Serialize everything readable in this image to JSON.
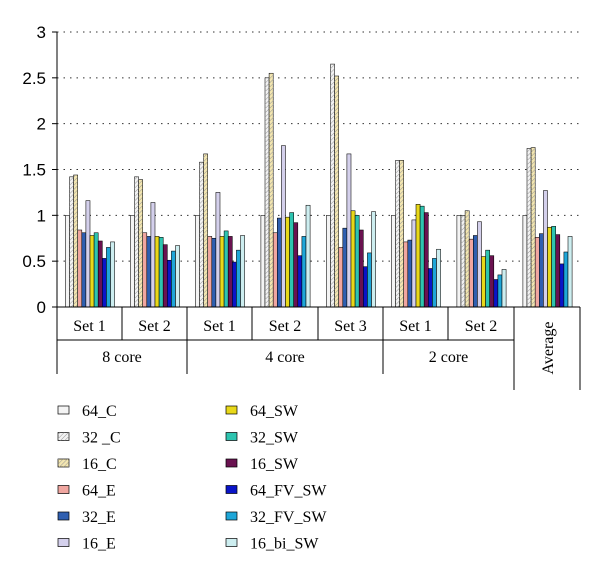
{
  "chart_data": {
    "type": "bar",
    "title": "",
    "ylabel": "",
    "xlabel": "",
    "ylim": [
      0,
      3
    ],
    "yticks": [
      "0",
      "0.5",
      "1",
      "1.5",
      "2",
      "2.5",
      "3"
    ],
    "grid": "horizontal dotted",
    "legend_placement": "bottom, two columns",
    "categories": [
      {
        "label": "Set 1",
        "group": "8 core"
      },
      {
        "label": "Set 2",
        "group": "8 core"
      },
      {
        "label": "Set 1",
        "group": "4 core"
      },
      {
        "label": "Set 2",
        "group": "4 core"
      },
      {
        "label": "Set 3",
        "group": "4 core"
      },
      {
        "label": "Set 1",
        "group": "2 core"
      },
      {
        "label": "Set 2",
        "group": "2 core"
      },
      {
        "label": "Average",
        "group": ""
      }
    ],
    "groups": [
      "8 core",
      "4 core",
      "2 core"
    ],
    "series": [
      {
        "name": "64_C",
        "color": "#f4f4f4",
        "pattern": "plain",
        "values": [
          1.0,
          1.0,
          1.0,
          1.0,
          1.0,
          1.0,
          1.0,
          1.0
        ]
      },
      {
        "name": "32 _C",
        "color": "#f2f2f2",
        "pattern": "hatch",
        "values": [
          1.42,
          1.42,
          1.58,
          2.5,
          2.65,
          1.6,
          1.0,
          1.73
        ]
      },
      {
        "name": "16_C",
        "color": "#f3e6b0",
        "pattern": "hatch",
        "values": [
          1.44,
          1.39,
          1.67,
          2.55,
          2.52,
          1.6,
          1.05,
          1.74
        ]
      },
      {
        "name": "64_E",
        "color": "#f0a6a0",
        "pattern": "plain",
        "values": [
          0.84,
          0.81,
          0.77,
          0.81,
          0.65,
          0.71,
          0.74,
          0.76
        ]
      },
      {
        "name": "32_E",
        "color": "#2f5fb0",
        "pattern": "plain",
        "values": [
          0.81,
          0.77,
          0.75,
          0.97,
          0.86,
          0.73,
          0.78,
          0.8
        ]
      },
      {
        "name": "16_E",
        "color": "#d4d0ec",
        "pattern": "plain",
        "values": [
          1.16,
          1.14,
          1.25,
          1.76,
          1.67,
          0.95,
          0.93,
          1.27
        ]
      },
      {
        "name": "64_SW",
        "color": "#e8d81a",
        "pattern": "plain",
        "values": [
          0.78,
          0.77,
          0.77,
          0.98,
          1.05,
          1.12,
          0.55,
          0.87
        ]
      },
      {
        "name": "32_SW",
        "color": "#2ec4b0",
        "pattern": "plain",
        "values": [
          0.81,
          0.76,
          0.83,
          1.03,
          1.0,
          1.1,
          0.62,
          0.88
        ]
      },
      {
        "name": "16_SW",
        "color": "#6a1250",
        "pattern": "plain",
        "values": [
          0.72,
          0.68,
          0.77,
          0.92,
          0.84,
          1.03,
          0.56,
          0.79
        ]
      },
      {
        "name": "64_FV_SW",
        "color": "#0a14c8",
        "pattern": "plain",
        "values": [
          0.53,
          0.51,
          0.49,
          0.56,
          0.44,
          0.42,
          0.3,
          0.47
        ]
      },
      {
        "name": "32_FV_SW",
        "color": "#1ea6d8",
        "pattern": "plain",
        "values": [
          0.65,
          0.61,
          0.62,
          0.77,
          0.59,
          0.53,
          0.35,
          0.6
        ]
      },
      {
        "name": "16_bi_SW",
        "color": "#cdeef0",
        "pattern": "plain",
        "values": [
          0.71,
          0.67,
          0.78,
          1.11,
          1.04,
          0.63,
          0.41,
          0.77
        ]
      }
    ]
  }
}
